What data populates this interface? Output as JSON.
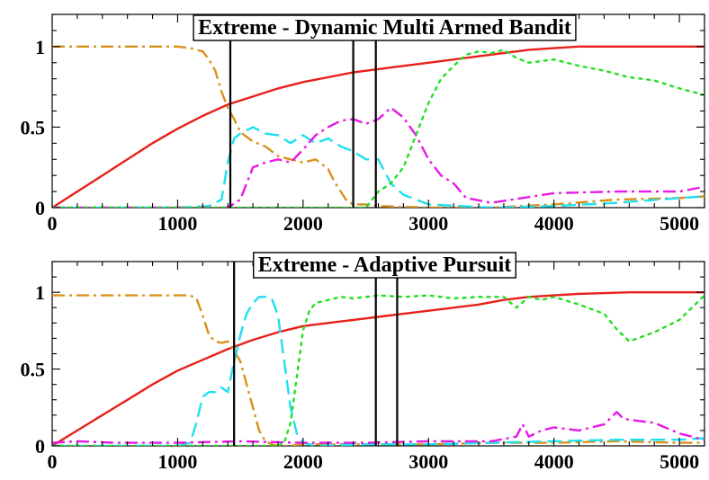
{
  "chart_data": [
    {
      "type": "line",
      "title": "Extreme - Dynamic Multi Armed Bandit",
      "xlim": [
        0,
        5200
      ],
      "ylim": [
        0,
        1.2
      ],
      "xticks": [
        0,
        1000,
        2000,
        3000,
        4000,
        5000
      ],
      "yticks": [
        0,
        0.5,
        1
      ],
      "xtick_labels": [
        "0",
        "1000",
        "2000",
        "3000",
        "4000",
        "5000"
      ],
      "ytick_labels": [
        "0",
        "0.5",
        "1"
      ],
      "grid": false,
      "vlines": [
        1420,
        2400,
        2580
      ],
      "series": [
        {
          "color": "#e8201a",
          "style": "solid",
          "x": [
            0,
            200,
            400,
            600,
            800,
            1000,
            1200,
            1400,
            1600,
            1800,
            2000,
            2200,
            2400,
            2600,
            2800,
            3000,
            3200,
            3400,
            3600,
            3800,
            4000,
            4200,
            4600,
            5200
          ],
          "y": [
            0,
            0.1,
            0.2,
            0.3,
            0.4,
            0.49,
            0.57,
            0.64,
            0.69,
            0.74,
            0.78,
            0.81,
            0.84,
            0.86,
            0.88,
            0.9,
            0.92,
            0.94,
            0.96,
            0.98,
            0.99,
            1.0,
            1.0,
            1.0
          ]
        },
        {
          "color": "#d9901a",
          "style": "dashdot",
          "x": [
            0,
            200,
            400,
            600,
            800,
            1000,
            1100,
            1200,
            1250,
            1300,
            1350,
            1400,
            1450,
            1500,
            1550,
            1600,
            1700,
            1800,
            1900,
            2000,
            2100,
            2200,
            2250,
            2300,
            2350,
            2400,
            2500,
            2600,
            3000,
            3500,
            4000,
            4500,
            5000,
            5200
          ],
          "y": [
            1,
            1,
            1,
            1,
            1,
            1,
            0.99,
            0.97,
            0.92,
            0.85,
            0.72,
            0.62,
            0.55,
            0.47,
            0.44,
            0.41,
            0.38,
            0.32,
            0.3,
            0.28,
            0.3,
            0.24,
            0.16,
            0.1,
            0.04,
            0.02,
            0.02,
            0.01,
            0.0,
            0.0,
            0.02,
            0.05,
            0.06,
            0.07
          ]
        },
        {
          "color": "#1ee0ee",
          "style": "dashed",
          "x": [
            0,
            1000,
            1250,
            1350,
            1400,
            1450,
            1500,
            1600,
            1700,
            1800,
            1900,
            2000,
            2100,
            2200,
            2300,
            2400,
            2500,
            2600,
            2700,
            2800,
            3000,
            3500,
            4000,
            4500,
            5000,
            5200
          ],
          "y": [
            0,
            0,
            0.01,
            0.05,
            0.28,
            0.43,
            0.46,
            0.5,
            0.46,
            0.45,
            0.4,
            0.45,
            0.4,
            0.43,
            0.38,
            0.35,
            0.3,
            0.3,
            0.15,
            0.08,
            0.02,
            0,
            0.01,
            0.03,
            0.06,
            0.07
          ]
        },
        {
          "color": "#e619e6",
          "style": "dashdot",
          "x": [
            0,
            1000,
            1400,
            1500,
            1550,
            1600,
            1700,
            1800,
            1900,
            2000,
            2100,
            2200,
            2300,
            2400,
            2500,
            2600,
            2700,
            2800,
            2900,
            3000,
            3100,
            3200,
            3300,
            3500,
            4000,
            4500,
            5000,
            5200
          ],
          "y": [
            0,
            0,
            0,
            0.05,
            0.15,
            0.25,
            0.28,
            0.3,
            0.28,
            0.36,
            0.45,
            0.5,
            0.54,
            0.55,
            0.52,
            0.55,
            0.62,
            0.56,
            0.45,
            0.3,
            0.2,
            0.15,
            0.06,
            0.03,
            0.09,
            0.1,
            0.1,
            0.13
          ]
        },
        {
          "color": "#22e022",
          "style": "dotted",
          "x": [
            0,
            2500,
            2600,
            2700,
            2800,
            2900,
            3000,
            3100,
            3200,
            3300,
            3400,
            3500,
            3600,
            3700,
            3800,
            4000,
            4200,
            4400,
            4600,
            4800,
            5000,
            5200
          ],
          "y": [
            0,
            0,
            0.1,
            0.15,
            0.25,
            0.45,
            0.65,
            0.8,
            0.88,
            0.95,
            0.97,
            0.96,
            0.98,
            0.93,
            0.9,
            0.92,
            0.88,
            0.85,
            0.81,
            0.79,
            0.74,
            0.7
          ]
        }
      ]
    },
    {
      "type": "line",
      "title": "Extreme - Adaptive Pursuit",
      "xlim": [
        0,
        5200
      ],
      "ylim": [
        0,
        1.2
      ],
      "xticks": [
        0,
        1000,
        2000,
        3000,
        4000,
        5000
      ],
      "yticks": [
        0,
        0.5,
        1
      ],
      "xtick_labels": [
        "0",
        "1000",
        "2000",
        "3000",
        "4000",
        "5000"
      ],
      "ytick_labels": [
        "0",
        "0.5",
        "1"
      ],
      "grid": false,
      "vlines": [
        1450,
        2580,
        2750
      ],
      "series": [
        {
          "color": "#e8201a",
          "style": "solid",
          "x": [
            0,
            200,
            400,
            600,
            800,
            1000,
            1200,
            1400,
            1600,
            1800,
            2000,
            2200,
            2400,
            2600,
            2800,
            3000,
            3200,
            3400,
            3600,
            3800,
            4000,
            4200,
            4600,
            5200
          ],
          "y": [
            0,
            0.1,
            0.2,
            0.3,
            0.4,
            0.49,
            0.56,
            0.63,
            0.69,
            0.74,
            0.78,
            0.8,
            0.82,
            0.84,
            0.86,
            0.88,
            0.9,
            0.92,
            0.95,
            0.97,
            0.98,
            0.99,
            1.0,
            1.0
          ]
        },
        {
          "color": "#d9901a",
          "style": "dashdot",
          "x": [
            0,
            200,
            400,
            600,
            800,
            1000,
            1100,
            1150,
            1200,
            1250,
            1300,
            1350,
            1400,
            1450,
            1500,
            1550,
            1600,
            1650,
            1700,
            1750,
            1800,
            1900,
            2000,
            2500,
            3000,
            3500,
            4000,
            4500,
            5000,
            5200
          ],
          "y": [
            0.98,
            0.98,
            0.98,
            0.98,
            0.98,
            0.98,
            0.98,
            0.96,
            0.85,
            0.72,
            0.68,
            0.67,
            0.68,
            0.62,
            0.55,
            0.4,
            0.25,
            0.1,
            0.03,
            0.01,
            0,
            0,
            0.01,
            0.01,
            0.01,
            0.02,
            0.02,
            0.03,
            0.02,
            0.02
          ]
        },
        {
          "color": "#1ee0ee",
          "style": "dashed",
          "x": [
            0,
            1000,
            1100,
            1150,
            1200,
            1250,
            1300,
            1350,
            1400,
            1450,
            1500,
            1550,
            1600,
            1650,
            1700,
            1750,
            1800,
            1850,
            1900,
            1950,
            2000,
            2100,
            2500,
            3000,
            3500,
            4000,
            4500,
            5000,
            5200
          ],
          "y": [
            0,
            0,
            0.02,
            0.15,
            0.32,
            0.35,
            0.35,
            0.38,
            0.35,
            0.55,
            0.72,
            0.86,
            0.93,
            0.97,
            0.97,
            0.96,
            0.85,
            0.55,
            0.25,
            0.08,
            0.02,
            0,
            0.01,
            0.01,
            0.02,
            0.03,
            0.04,
            0.04,
            0.05
          ]
        },
        {
          "color": "#e619e6",
          "style": "dashdot",
          "x": [
            0,
            200,
            500,
            1000,
            1500,
            2000,
            2500,
            3000,
            3500,
            3700,
            3750,
            3800,
            3900,
            4000,
            4200,
            4400,
            4500,
            4550,
            4600,
            4800,
            5000,
            5200
          ],
          "y": [
            0.02,
            0.03,
            0.02,
            0.02,
            0.03,
            0.02,
            0.02,
            0.03,
            0.03,
            0.06,
            0.14,
            0.06,
            0.1,
            0.12,
            0.1,
            0.14,
            0.22,
            0.18,
            0.17,
            0.15,
            0.08,
            0.04
          ]
        },
        {
          "color": "#22e022",
          "style": "dotted",
          "x": [
            0,
            1800,
            1850,
            1900,
            1950,
            2000,
            2050,
            2100,
            2200,
            2300,
            2400,
            2500,
            2600,
            2800,
            3000,
            3200,
            3400,
            3600,
            3700,
            3800,
            3900,
            4000,
            4200,
            4400,
            4500,
            4600,
            4800,
            5000,
            5200
          ],
          "y": [
            0,
            0,
            0.02,
            0.15,
            0.45,
            0.75,
            0.88,
            0.93,
            0.95,
            0.97,
            0.96,
            0.97,
            0.98,
            0.97,
            0.98,
            0.96,
            0.97,
            0.97,
            0.9,
            0.97,
            0.95,
            0.97,
            0.92,
            0.86,
            0.76,
            0.68,
            0.74,
            0.82,
            0.98
          ]
        }
      ]
    }
  ]
}
